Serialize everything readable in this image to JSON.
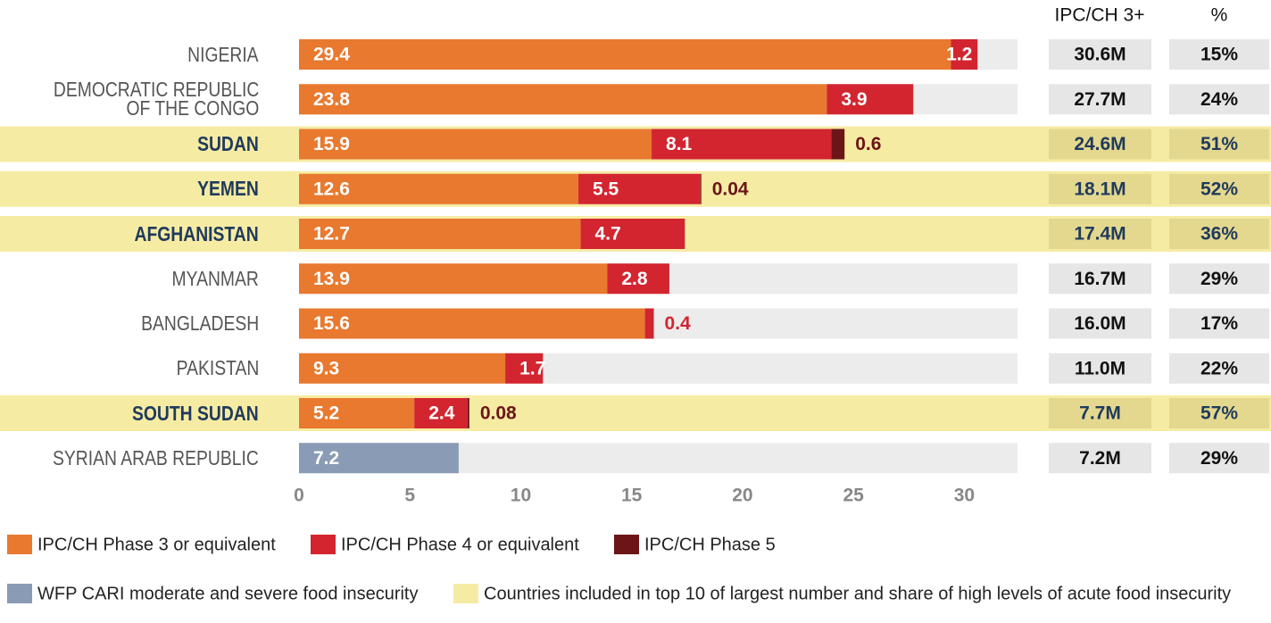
{
  "chart_data": {
    "type": "stacked_barh",
    "categories": [
      "NIGERIA",
      "DEMOCRATIC REPUBLIC\nOF THE CONGO",
      "SUDAN",
      "YEMEN",
      "AFGHANISTAN",
      "MYANMAR",
      "BANGLADESH",
      "PAKISTAN",
      "SOUTH SUDAN",
      "SYRIAN ARAB REPUBLIC"
    ],
    "series": [
      {
        "name": "IPC/CH Phase 3 or equivalent",
        "color": "#e8792f",
        "values": [
          29.4,
          23.8,
          15.9,
          12.6,
          12.7,
          13.9,
          15.6,
          9.3,
          5.2,
          null
        ]
      },
      {
        "name": "IPC/CH Phase 4 or equivalent",
        "color": "#d22530",
        "values": [
          1.2,
          3.9,
          8.1,
          5.5,
          4.7,
          2.8,
          0.4,
          1.7,
          2.4,
          null
        ]
      },
      {
        "name": "IPC/CH Phase 5",
        "color": "#6b1518",
        "values": [
          null,
          null,
          0.6,
          0.04,
          null,
          null,
          null,
          null,
          0.08,
          null
        ]
      },
      {
        "name": "WFP CARI moderate and severe food insecurity",
        "color": "#8a9bb5",
        "values": [
          null,
          null,
          null,
          null,
          null,
          null,
          null,
          null,
          null,
          7.2
        ]
      }
    ],
    "highlight": {
      "name": "Countries included in top 10 of largest number and share of high levels of acute food insecurity",
      "color": "#f6eba3",
      "rows": [
        2,
        3,
        4,
        8
      ]
    },
    "columns": [
      {
        "header": "IPC/CH 3+",
        "values": [
          "30.6M",
          "27.7M",
          "24.6M",
          "18.1M",
          "17.4M",
          "16.7M",
          "16.0M",
          "11.0M",
          "7.7M",
          "7.2M"
        ]
      },
      {
        "header": "%",
        "values": [
          15,
          24,
          51,
          52,
          36,
          29,
          17,
          22,
          57,
          29
        ],
        "value_labels": [
          "15%",
          "24%",
          "51%",
          "52%",
          "36%",
          "29%",
          "17%",
          "22%",
          "57%",
          "29%"
        ]
      }
    ],
    "xlim": [
      0,
      32.4
    ],
    "xticks": [
      0,
      5,
      10,
      15,
      20,
      25,
      30
    ]
  }
}
